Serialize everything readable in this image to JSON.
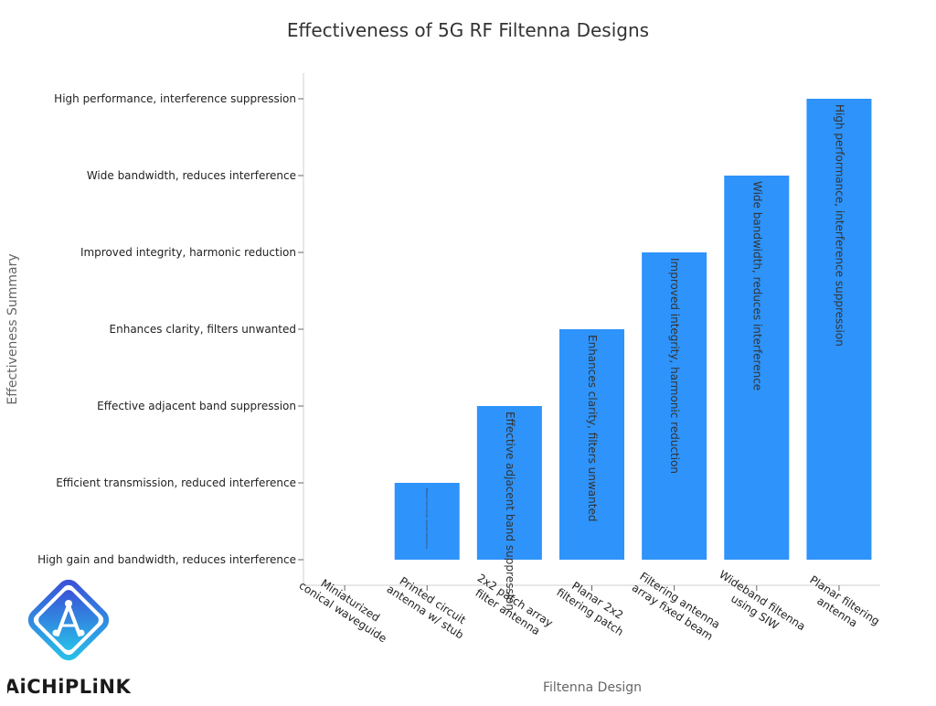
{
  "chart_data": {
    "type": "bar",
    "title": "Effectiveness of 5G RF Filtenna Designs",
    "xlabel": "Filtenna Design",
    "ylabel": "Effectiveness Summary",
    "categories": [
      "Miniaturized conical waveguide",
      "Printed circuit antenna w/ stub",
      "2x2 patch array filter antenna",
      "Planar 2x2 filtering patch",
      "Filtering antenna array fixed beam",
      "Wideband filtenna using SIW",
      "Planar filtering antenna"
    ],
    "category_lines": [
      [
        "Miniaturized",
        "conical waveguide"
      ],
      [
        "Printed circuit",
        "antenna w/ stub"
      ],
      [
        "2x2 patch array",
        "filter antenna"
      ],
      [
        "Planar 2x2",
        "filtering patch"
      ],
      [
        "Filtering antenna",
        "array fixed beam"
      ],
      [
        "Wideband filtenna",
        "using SIW"
      ],
      [
        "Planar filtering",
        "antenna"
      ]
    ],
    "y_ticks": [
      "High gain and bandwidth, reduces interference",
      "Efficient transmission, reduced interference",
      "Effective adjacent band suppression",
      "Enhances clarity, filters unwanted",
      "Improved integrity, harmonic reduction",
      "Wide bandwidth, reduces interference",
      "High performance, interference suppression"
    ],
    "values": [
      "High gain and bandwidth, reduces interference",
      "Efficient transmission, reduced interference",
      "Effective adjacent band suppression",
      "Enhances clarity, filters unwanted",
      "Improved integrity, harmonic reduction",
      "Wide bandwidth, reduces interference",
      "High performance, interference suppression"
    ],
    "bar_color": "#2e93fa",
    "grid": false,
    "legend": "none"
  },
  "logo": {
    "text": "AiCHiPLiNK",
    "colors": [
      "#3b4fd8",
      "#27c3e8",
      "#1a1a1a"
    ]
  }
}
